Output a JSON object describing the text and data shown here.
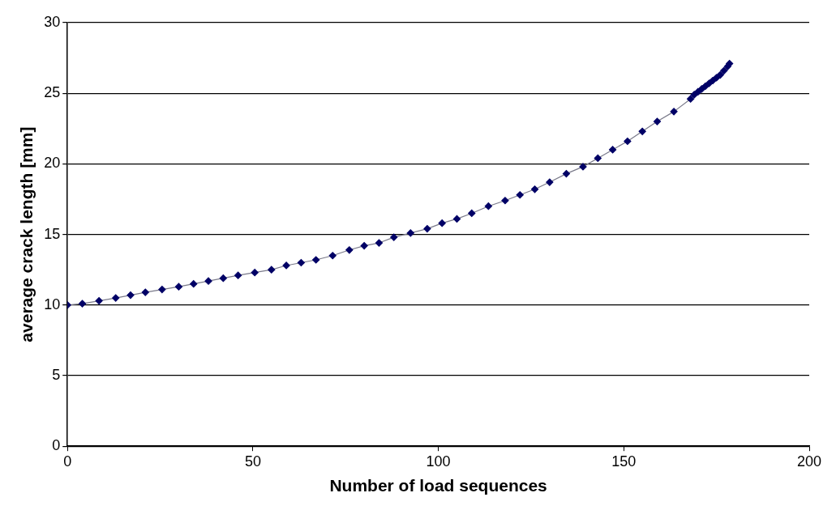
{
  "chart_data": {
    "type": "line",
    "xlabel": "Number of load sequences",
    "ylabel": "average crack length [mm]",
    "x": [
      0,
      4,
      8.5,
      13,
      17,
      21,
      25.5,
      30,
      34,
      38,
      42,
      46,
      50.5,
      55,
      59,
      63,
      67,
      71.5,
      76,
      80,
      84,
      88,
      92.5,
      97,
      101,
      105,
      109,
      113.5,
      118,
      122,
      126,
      130,
      134.5,
      139,
      143,
      147,
      151,
      155,
      159,
      163.5,
      168,
      169,
      170,
      171,
      172,
      173,
      174,
      175,
      176,
      177,
      178,
      178.5
    ],
    "series": [
      {
        "color": "#000066",
        "values": [
          10,
          10.1,
          10.3,
          10.5,
          10.7,
          10.9,
          11.1,
          11.3,
          11.5,
          11.7,
          11.9,
          12.1,
          12.3,
          12.5,
          12.8,
          13,
          13.2,
          13.5,
          13.9,
          14.2,
          14.4,
          14.8,
          15.1,
          15.4,
          15.8,
          16.1,
          16.5,
          17,
          17.4,
          17.8,
          18.2,
          18.7,
          19.3,
          19.8,
          20.4,
          21,
          21.6,
          22.3,
          23,
          23.7,
          24.6,
          24.9,
          25.1,
          25.3,
          25.5,
          25.7,
          25.9,
          26.1,
          26.3,
          26.6,
          26.9,
          27.1
        ]
      }
    ],
    "xlim": [
      0,
      200
    ],
    "xticks": [
      0,
      50,
      100,
      150,
      200
    ],
    "ylim": [
      0,
      30
    ],
    "yticks": [
      0,
      5,
      10,
      15,
      20,
      25,
      30
    ],
    "grid": "y",
    "legend": false,
    "marker": "diamond",
    "line_style": "solid"
  }
}
